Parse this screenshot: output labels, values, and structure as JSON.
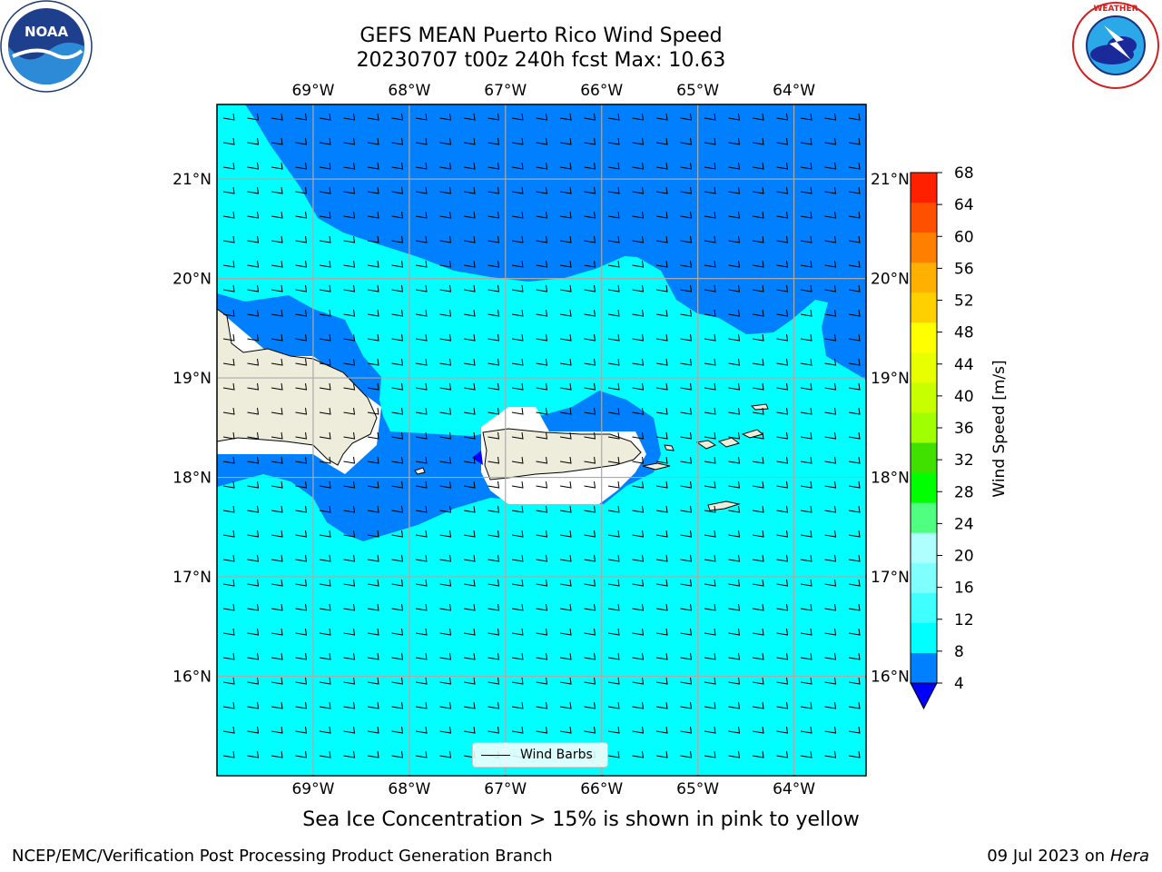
{
  "title": {
    "line1": "GEFS MEAN Puerto Rico Wind Speed",
    "line2": "20230707 t00z 240h fcst   Max: 10.63"
  },
  "logos": {
    "left": "NOAA",
    "right_text": "NATIONAL WEATHER SERVICE"
  },
  "map": {
    "lon_labels": [
      "69°W",
      "68°W",
      "67°W",
      "66°W",
      "65°W",
      "64°W"
    ],
    "lat_labels": [
      "21°N",
      "20°N",
      "19°N",
      "18°N",
      "17°N",
      "16°N"
    ],
    "lon_range": [
      -70.0,
      -63.25
    ],
    "lat_range": [
      15.0,
      21.75
    ],
    "gridlines": true,
    "ocean_color_low": "#0080ff",
    "ocean_color_mid": "#00ffff",
    "land_color": "#eeeddc"
  },
  "legend": {
    "label": "Wind Barbs",
    "placement": "bottom-center"
  },
  "colorbar": {
    "label": "Wind Speed [m/s]",
    "ticks": [
      "4",
      "8",
      "12",
      "16",
      "20",
      "24",
      "28",
      "32",
      "36",
      "40",
      "44",
      "48",
      "52",
      "56",
      "60",
      "64",
      "68"
    ],
    "colors": [
      "#0080ff",
      "#00ffff",
      "#40ffff",
      "#80ffff",
      "#b0ffff",
      "#50ff80",
      "#00ff00",
      "#40e000",
      "#a0ff00",
      "#c8ff00",
      "#e8ff00",
      "#ffff00",
      "#ffd000",
      "#ffb000",
      "#ff8000",
      "#ff5000",
      "#ff2000"
    ],
    "under_color": "#0000ff"
  },
  "note": "Sea Ice Concentration > 15% is shown in pink to yellow",
  "footer": {
    "left": "NCEP/EMC/Verification Post Processing Product Generation Branch",
    "right_date": "09 Jul 2023 on ",
    "right_machine": "Hera"
  }
}
